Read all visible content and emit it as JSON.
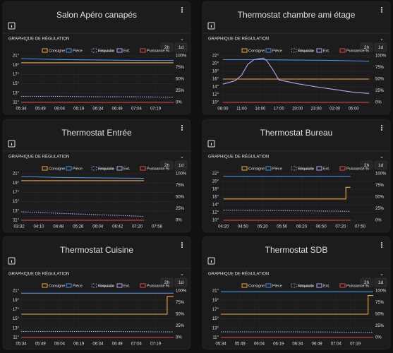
{
  "chart_data": [
    {
      "type": "line",
      "title": "Salon Apéro canapés",
      "section_label": "GRAPHIQUE DE RÉGULATION",
      "range_buttons": [
        "2h",
        "1d"
      ],
      "grid": true,
      "xlim": [
        334,
        453
      ],
      "xticks": [
        {
          "value": 334,
          "label": "05:34"
        },
        {
          "value": 349,
          "label": "05:49"
        },
        {
          "value": 364,
          "label": "06:04"
        },
        {
          "value": 379,
          "label": "06:19"
        },
        {
          "value": 394,
          "label": "06:34"
        },
        {
          "value": 409,
          "label": "06:49"
        },
        {
          "value": 424,
          "label": "07:04"
        },
        {
          "value": 439,
          "label": "07:19"
        }
      ],
      "ylim": [
        11,
        21
      ],
      "yticks": [
        {
          "value": 21,
          "label": "21°"
        },
        {
          "value": 19,
          "label": "19°"
        },
        {
          "value": 17,
          "label": "17°"
        },
        {
          "value": 15,
          "label": "15°"
        },
        {
          "value": 13,
          "label": "13°"
        },
        {
          "value": 11,
          "label": "11°"
        }
      ],
      "y2lim": [
        0,
        100
      ],
      "y2ticks": [
        {
          "value": 100,
          "label": "100%"
        },
        {
          "value": 75,
          "label": "75%"
        },
        {
          "value": 50,
          "label": "50%"
        },
        {
          "value": 25,
          "label": "25%"
        },
        {
          "value": 0,
          "label": "0%"
        }
      ],
      "series": [
        {
          "name": "Consigne",
          "color": "#f0a742",
          "x": [
            334,
            453
          ],
          "values": [
            19.5,
            19.5
          ]
        },
        {
          "name": "Pièce",
          "color": "#4a90e2",
          "x": [
            334,
            364,
            394,
            424,
            453
          ],
          "values": [
            20.4,
            20.2,
            20.1,
            20.0,
            20.0
          ]
        },
        {
          "name": "Réquisite",
          "color": "#9b8fd6",
          "hidden": true
        },
        {
          "name": "Ext.",
          "color": "#b7a6f0",
          "dash": true,
          "x": [
            334,
            364,
            394,
            424,
            453
          ],
          "values": [
            12.3,
            12.3,
            12.2,
            12.2,
            12.1
          ]
        },
        {
          "name": "Puissance %",
          "color": "#e0474c",
          "axis": "y2",
          "x": [
            334,
            453
          ],
          "values": [
            0,
            0
          ]
        }
      ]
    },
    {
      "type": "line",
      "title": "Thermostat chambre ami étage",
      "section_label": "GRAPHIQUE DE RÉGULATION",
      "range_buttons": [
        "2h",
        "1d"
      ],
      "grid": true,
      "xlim": [
        460,
        1930
      ],
      "xticks": [
        {
          "value": 480,
          "label": "08:00"
        },
        {
          "value": 660,
          "label": "11:00"
        },
        {
          "value": 840,
          "label": "14:00"
        },
        {
          "value": 1020,
          "label": "17:00"
        },
        {
          "value": 1200,
          "label": "20:00"
        },
        {
          "value": 1380,
          "label": "23:00"
        },
        {
          "value": 1560,
          "label": "02:00"
        },
        {
          "value": 1740,
          "label": "05:00"
        }
      ],
      "ylim": [
        10,
        22
      ],
      "yticks": [
        {
          "value": 22,
          "label": "22°"
        },
        {
          "value": 20,
          "label": "20°"
        },
        {
          "value": 18,
          "label": "18°"
        },
        {
          "value": 16,
          "label": "16°"
        },
        {
          "value": 14,
          "label": "14°"
        },
        {
          "value": 12,
          "label": "12°"
        },
        {
          "value": 10,
          "label": "10°"
        }
      ],
      "y2lim": [
        0,
        100
      ],
      "y2ticks": [
        {
          "value": 100,
          "label": "100%"
        },
        {
          "value": 75,
          "label": "75%"
        },
        {
          "value": 50,
          "label": "50%"
        },
        {
          "value": 25,
          "label": "25%"
        },
        {
          "value": 0,
          "label": "0%"
        }
      ],
      "series": [
        {
          "name": "Consigne",
          "color": "#f0a742",
          "x": [
            480,
            1890
          ],
          "values": [
            16,
            16
          ]
        },
        {
          "name": "Pièce",
          "color": "#4a90e2",
          "x": [
            480,
            840,
            1200,
            1560,
            1890
          ],
          "values": [
            21.0,
            21.0,
            20.9,
            20.8,
            20.6
          ]
        },
        {
          "name": "Réquisite",
          "color": "#9b8fd6",
          "hidden": true
        },
        {
          "name": "Ext.",
          "color": "#b7a6f0",
          "x": [
            480,
            600,
            660,
            720,
            780,
            840,
            870,
            900,
            960,
            1020,
            1200,
            1380,
            1560,
            1740,
            1890
          ],
          "values": [
            14.7,
            15.6,
            17.0,
            19.8,
            21.0,
            21.3,
            21.4,
            20.8,
            18.5,
            15.8,
            14.8,
            14.0,
            13.3,
            12.6,
            12.3
          ]
        },
        {
          "name": "Puissance %",
          "color": "#e0474c",
          "axis": "y2",
          "x": [
            480,
            1890
          ],
          "values": [
            0,
            0
          ]
        }
      ]
    },
    {
      "type": "line",
      "title": "Thermostat Entrée",
      "section_label": "GRAPHIQUE DE RÉGULATION",
      "range_buttons": [
        "2h",
        "1d"
      ],
      "grid": true,
      "xlim": [
        216,
        510
      ],
      "xticks": [
        {
          "value": 212,
          "label": "03:32"
        },
        {
          "value": 250,
          "label": "04:10"
        },
        {
          "value": 288,
          "label": "04:48"
        },
        {
          "value": 326,
          "label": "05:26"
        },
        {
          "value": 364,
          "label": "06:04"
        },
        {
          "value": 402,
          "label": "06:42"
        },
        {
          "value": 440,
          "label": "07:20"
        },
        {
          "value": 478,
          "label": "07:58"
        }
      ],
      "ylim": [
        11,
        21
      ],
      "yticks": [
        {
          "value": 21,
          "label": "21°"
        },
        {
          "value": 19,
          "label": "19°"
        },
        {
          "value": 17,
          "label": "17°"
        },
        {
          "value": 15,
          "label": "15°"
        },
        {
          "value": 13,
          "label": "13°"
        },
        {
          "value": 11,
          "label": "11°"
        }
      ],
      "y2lim": [
        0,
        100
      ],
      "y2ticks": [
        {
          "value": 100,
          "label": "100%"
        },
        {
          "value": 75,
          "label": "75%"
        },
        {
          "value": 50,
          "label": "50%"
        },
        {
          "value": 25,
          "label": "25%"
        },
        {
          "value": 0,
          "label": "0%"
        }
      ],
      "series": [
        {
          "name": "Consigne",
          "color": "#f0a742",
          "x": [
            216,
            453
          ],
          "values": [
            19.5,
            19.5
          ]
        },
        {
          "name": "Pièce",
          "color": "#4a90e2",
          "x": [
            216,
            288,
            364,
            453
          ],
          "values": [
            20.4,
            20.2,
            20.1,
            20.0
          ]
        },
        {
          "name": "Réquisite",
          "color": "#9b8fd6",
          "hidden": true
        },
        {
          "name": "Ext.",
          "color": "#b7a6f0",
          "dash": true,
          "x": [
            216,
            288,
            364,
            440,
            453
          ],
          "values": [
            12.8,
            12.5,
            12.2,
            11.9,
            11.8
          ]
        },
        {
          "name": "Puissance %",
          "color": "#e0474c",
          "axis": "y2",
          "x": [
            216,
            453
          ],
          "values": [
            0,
            0
          ]
        }
      ]
    },
    {
      "type": "line",
      "title": "Thermostat Bureau",
      "section_label": "GRAPHIQUE DE RÉGULATION",
      "range_buttons": [
        "2h",
        "1d"
      ],
      "grid": true,
      "xlim": [
        256,
        490
      ],
      "xticks": [
        {
          "value": 260,
          "label": "04:20"
        },
        {
          "value": 290,
          "label": "04:50"
        },
        {
          "value": 320,
          "label": "05:20"
        },
        {
          "value": 350,
          "label": "05:50"
        },
        {
          "value": 380,
          "label": "06:20"
        },
        {
          "value": 410,
          "label": "06:50"
        },
        {
          "value": 440,
          "label": "07:20"
        },
        {
          "value": 470,
          "label": "07:50"
        }
      ],
      "ylim": [
        10,
        22
      ],
      "yticks": [
        {
          "value": 22,
          "label": "22°"
        },
        {
          "value": 20,
          "label": "20°"
        },
        {
          "value": 18,
          "label": "18°"
        },
        {
          "value": 16,
          "label": "16°"
        },
        {
          "value": 14,
          "label": "14°"
        },
        {
          "value": 12,
          "label": "12°"
        },
        {
          "value": 10,
          "label": "10°"
        }
      ],
      "y2lim": [
        0,
        100
      ],
      "y2ticks": [
        {
          "value": 100,
          "label": "100%"
        },
        {
          "value": 75,
          "label": "75%"
        },
        {
          "value": 50,
          "label": "50%"
        },
        {
          "value": 25,
          "label": "25%"
        },
        {
          "value": 0,
          "label": "0%"
        }
      ],
      "series": [
        {
          "name": "Consigne",
          "color": "#f0a742",
          "x": [
            260,
            448,
            448,
            455
          ],
          "values": [
            15.5,
            15.5,
            18.5,
            18.5
          ]
        },
        {
          "name": "Pièce",
          "color": "#4a90e2",
          "x": [
            260,
            455
          ],
          "values": [
            21.3,
            21.3
          ]
        },
        {
          "name": "Réquisite",
          "color": "#9b8fd6",
          "hidden": true
        },
        {
          "name": "Ext.",
          "color": "#b7a6f0",
          "dash": true,
          "x": [
            260,
            350,
            455
          ],
          "values": [
            12.6,
            12.5,
            12.3
          ]
        },
        {
          "name": "Puissance %",
          "color": "#e0474c",
          "axis": "y2",
          "x": [
            260,
            455
          ],
          "values": [
            0,
            0
          ]
        }
      ]
    },
    {
      "type": "line",
      "title": "Thermostat Cuisine",
      "section_label": "GRAPHIQUE DE RÉGULATION",
      "range_buttons": [
        "2h",
        "1d"
      ],
      "grid": true,
      "xlim": [
        334,
        453
      ],
      "xticks": [
        {
          "value": 334,
          "label": "05:34"
        },
        {
          "value": 349,
          "label": "05:49"
        },
        {
          "value": 364,
          "label": "06:04"
        },
        {
          "value": 379,
          "label": "06:19"
        },
        {
          "value": 394,
          "label": "06:34"
        },
        {
          "value": 409,
          "label": "06:49"
        },
        {
          "value": 424,
          "label": "07:04"
        },
        {
          "value": 439,
          "label": "07:19"
        }
      ],
      "ylim": [
        11,
        21
      ],
      "yticks": [
        {
          "value": 21,
          "label": "21°"
        },
        {
          "value": 19,
          "label": "19°"
        },
        {
          "value": 17,
          "label": "17°"
        },
        {
          "value": 15,
          "label": "15°"
        },
        {
          "value": 13,
          "label": "13°"
        },
        {
          "value": 11,
          "label": "11°"
        }
      ],
      "y2lim": [
        0,
        100
      ],
      "y2ticks": [
        {
          "value": 100,
          "label": "100%"
        },
        {
          "value": 75,
          "label": "75%"
        },
        {
          "value": 50,
          "label": "50%"
        },
        {
          "value": 25,
          "label": "25%"
        },
        {
          "value": 0,
          "label": "0%"
        }
      ],
      "series": [
        {
          "name": "Consigne",
          "color": "#f0a742",
          "x": [
            334,
            448,
            448,
            453
          ],
          "values": [
            16,
            16,
            19.8,
            19.8
          ]
        },
        {
          "name": "Pièce",
          "color": "#4a90e2",
          "x": [
            334,
            453
          ],
          "values": [
            20.5,
            20.5
          ]
        },
        {
          "name": "Réquisite",
          "color": "#9b8fd6",
          "hidden": true
        },
        {
          "name": "Ext.",
          "color": "#b7a6f0",
          "dash": true,
          "x": [
            334,
            394,
            453
          ],
          "values": [
            12.3,
            12.3,
            12.2
          ]
        },
        {
          "name": "Puissance %",
          "color": "#e0474c",
          "axis": "y2",
          "x": [
            334,
            453
          ],
          "values": [
            0,
            0
          ]
        }
      ]
    },
    {
      "type": "line",
      "title": "Thermostat SDB",
      "section_label": "GRAPHIQUE DE RÉGULATION",
      "range_buttons": [
        "2h",
        "1d"
      ],
      "grid": true,
      "xlim": [
        334,
        453
      ],
      "xticks": [
        {
          "value": 334,
          "label": "05:34"
        },
        {
          "value": 349,
          "label": "05:49"
        },
        {
          "value": 364,
          "label": "06:04"
        },
        {
          "value": 379,
          "label": "06:19"
        },
        {
          "value": 394,
          "label": "06:34"
        },
        {
          "value": 409,
          "label": "06:49"
        },
        {
          "value": 424,
          "label": "07:04"
        },
        {
          "value": 439,
          "label": "07:19"
        }
      ],
      "ylim": [
        11,
        21
      ],
      "yticks": [
        {
          "value": 21,
          "label": "21°"
        },
        {
          "value": 19,
          "label": "19°"
        },
        {
          "value": 17,
          "label": "17°"
        },
        {
          "value": 15,
          "label": "15°"
        },
        {
          "value": 13,
          "label": "13°"
        },
        {
          "value": 11,
          "label": "11°"
        }
      ],
      "y2lim": [
        0,
        100
      ],
      "y2ticks": [
        {
          "value": 100,
          "label": "100%"
        },
        {
          "value": 75,
          "label": "75%"
        },
        {
          "value": 50,
          "label": "50%"
        },
        {
          "value": 25,
          "label": "25%"
        },
        {
          "value": 0,
          "label": "0%"
        }
      ],
      "series": [
        {
          "name": "Consigne",
          "color": "#f0a742",
          "x": [
            334,
            449,
            449,
            453
          ],
          "values": [
            16,
            16,
            20,
            20
          ]
        },
        {
          "name": "Pièce",
          "color": "#4a90e2",
          "x": [
            334,
            453
          ],
          "values": [
            20.8,
            20.8
          ]
        },
        {
          "name": "Réquisite",
          "color": "#9b8fd6",
          "hidden": true
        },
        {
          "name": "Ext.",
          "color": "#b7a6f0",
          "dash": true,
          "x": [
            334,
            394,
            453
          ],
          "values": [
            12.2,
            12.2,
            12.1
          ]
        },
        {
          "name": "Puissance %",
          "color": "#e0474c",
          "axis": "y2",
          "x": [
            334,
            453
          ],
          "values": [
            0,
            0
          ]
        }
      ]
    }
  ]
}
